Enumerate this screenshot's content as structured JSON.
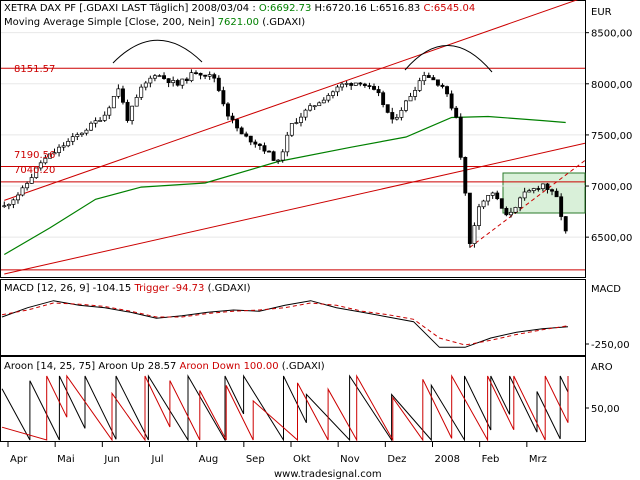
{
  "main_panel": {
    "title_prefix": "XETRA DAX PF [.GDAXI LAST Täglich] 2008/03/04 :",
    "open_label": "O",
    "open": "6692.73",
    "high_label": "H",
    "high": "6720.16",
    "low_label": "L",
    "low": "6516.83",
    "close_label": "C",
    "close": "6545.04",
    "ma_label": "Moving Average Simple [Close, 200, Nein]",
    "ma_value": "7621.00",
    "ma_suffix": "(.GDAXI)",
    "currency": "EUR",
    "level_8151": "8151.57",
    "level_7190": "7190.56",
    "level_7040": "7040.20"
  },
  "macd_panel": {
    "label": "MACD [12, 26, 9]",
    "value": "-104.15",
    "trigger_label": "Trigger",
    "trigger_value": "-94.73",
    "suffix": "(.GDAXI)",
    "axis_title": "MACD",
    "tick": "-250,00"
  },
  "aroon_panel": {
    "label": "Aroon [14, 25, 75]",
    "up_label": "Aroon Up",
    "up_value": "28.57",
    "down_label": "Aroon Down",
    "down_value": "100.00",
    "suffix": "(.GDAXI)",
    "axis_title": "ARO",
    "tick": "50,00"
  },
  "watermark": "www.tradesignal.com",
  "colors": {
    "price": "#000000",
    "ma": "#008000",
    "lines": "#cc0000",
    "value_red": "#cc0000",
    "value_green": "#008000",
    "channel_fill": "#d9f0d9"
  },
  "chart_data": {
    "type": "candlestick",
    "x_labels": [
      "Apr",
      "Mai",
      "Jun",
      "Jul",
      "Aug",
      "Sep",
      "Okt",
      "Nov",
      "Dez",
      "2008",
      "Feb",
      "Mrz"
    ],
    "y_ticks": [
      "8500,00",
      "8000,00",
      "7500,00",
      "7000,00",
      "6500,00"
    ],
    "y_tick_values": [
      8500,
      8000,
      7500,
      7000,
      6500
    ],
    "ylim": [
      6120,
      8800
    ],
    "price_path": [
      [
        0,
        6800
      ],
      [
        4,
        6960
      ],
      [
        8,
        7230
      ],
      [
        13,
        7400
      ],
      [
        18,
        7560
      ],
      [
        22,
        7700
      ],
      [
        25,
        7960
      ],
      [
        27,
        7660
      ],
      [
        30,
        7950
      ],
      [
        33,
        8100
      ],
      [
        38,
        7990
      ],
      [
        42,
        8120
      ],
      [
        46,
        8060
      ],
      [
        49,
        7700
      ],
      [
        52,
        7500
      ],
      [
        56,
        7400
      ],
      [
        60,
        7230
      ],
      [
        63,
        7600
      ],
      [
        66,
        7730
      ],
      [
        70,
        7860
      ],
      [
        74,
        7990
      ],
      [
        78,
        8020
      ],
      [
        82,
        7890
      ],
      [
        85,
        7630
      ],
      [
        88,
        7820
      ],
      [
        92,
        8100
      ],
      [
        96,
        7980
      ],
      [
        99,
        7680
      ],
      [
        101,
        6920
      ],
      [
        102,
        6430
      ],
      [
        104,
        6820
      ],
      [
        107,
        6940
      ],
      [
        110,
        6700
      ],
      [
        114,
        6920
      ],
      [
        118,
        7020
      ],
      [
        121,
        6880
      ],
      [
        123,
        6545
      ]
    ],
    "ma200_path": [
      [
        0,
        6330
      ],
      [
        10,
        6590
      ],
      [
        20,
        6870
      ],
      [
        30,
        6990
      ],
      [
        44,
        7030
      ],
      [
        60,
        7240
      ],
      [
        76,
        7380
      ],
      [
        88,
        7480
      ],
      [
        98,
        7670
      ],
      [
        106,
        7680
      ],
      [
        118,
        7640
      ],
      [
        123,
        7621
      ]
    ],
    "horizontal_levels": [
      8151.57,
      7190.56,
      7040.2
    ],
    "trend_lines": [
      {
        "from": [
          0,
          6860
        ],
        "to": [
          123,
          8770
        ]
      },
      {
        "from": [
          0,
          6140
        ],
        "to": [
          123,
          7340
        ]
      }
    ],
    "macd_series": [
      {
        "name": "MACD",
        "values": [
          -20,
          60,
          120,
          80,
          60,
          20,
          -30,
          -10,
          20,
          40,
          30,
          80,
          120,
          60,
          20,
          -20,
          -60,
          -280,
          -280,
          -200,
          -150,
          -120,
          -104.15
        ]
      },
      {
        "name": "Trigger",
        "values": [
          0,
          40,
          100,
          90,
          70,
          30,
          -20,
          -20,
          10,
          30,
          40,
          60,
          100,
          80,
          30,
          0,
          -40,
          -200,
          -260,
          -220,
          -170,
          -130,
          -94.73
        ]
      }
    ],
    "aroon_series": [
      {
        "name": "Aroon Up",
        "color": "#000000"
      },
      {
        "name": "Aroon Down",
        "color": "#cc0000"
      }
    ]
  }
}
